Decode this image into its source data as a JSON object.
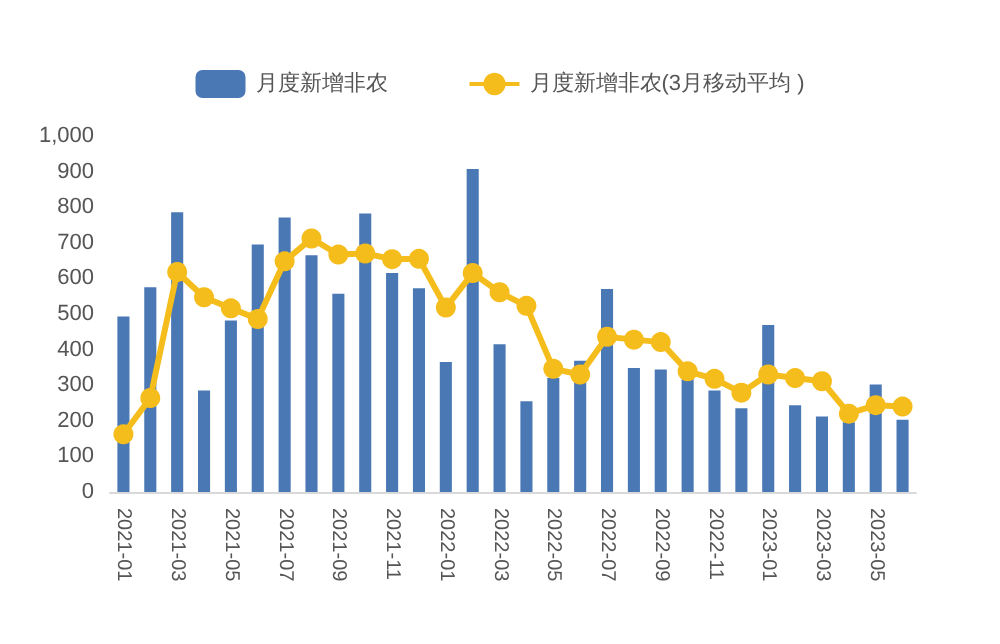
{
  "chart_data": {
    "type": "bar",
    "categories": [
      "2021-01",
      null,
      "2021-03",
      null,
      "2021-05",
      null,
      "2021-07",
      null,
      "2021-09",
      null,
      "2021-11",
      null,
      "2022-01",
      null,
      "2022-03",
      null,
      "2022-05",
      null,
      "2022-07",
      null,
      "2022-09",
      null,
      "2022-11",
      null,
      "2023-01",
      null,
      "2023-03",
      null,
      "2023-05",
      null
    ],
    "series": [
      {
        "name": "月度新增非农",
        "color": "#4a78b5",
        "values": [
          493,
          575,
          786,
          285,
          482,
          695,
          771,
          665,
          557,
          782,
          615,
          572,
          365,
          907,
          415,
          255,
          320,
          369,
          570,
          348,
          344,
          317,
          285,
          235,
          469,
          244,
          212,
          196,
          302,
          203
        ]
      },
      {
        "name": "月度新增非农(3月移动平均 )",
        "type": "line",
        "color": "#f5bd1c",
        "values": [
          162,
          264,
          618,
          547,
          516,
          486,
          648,
          712,
          667,
          670,
          654,
          655,
          518,
          615,
          561,
          523,
          346,
          330,
          436,
          428,
          421,
          339,
          318,
          279,
          330,
          320,
          311,
          220,
          244,
          240
        ]
      }
    ],
    "ylim": [
      0,
      1000
    ],
    "yticks": [
      0,
      100,
      200,
      300,
      400,
      500,
      600,
      700,
      800,
      900,
      {
        "value": 1000,
        "label": "1,000"
      }
    ],
    "grid": false,
    "legend": "top",
    "marker": "circle",
    "line_style": "solid"
  }
}
